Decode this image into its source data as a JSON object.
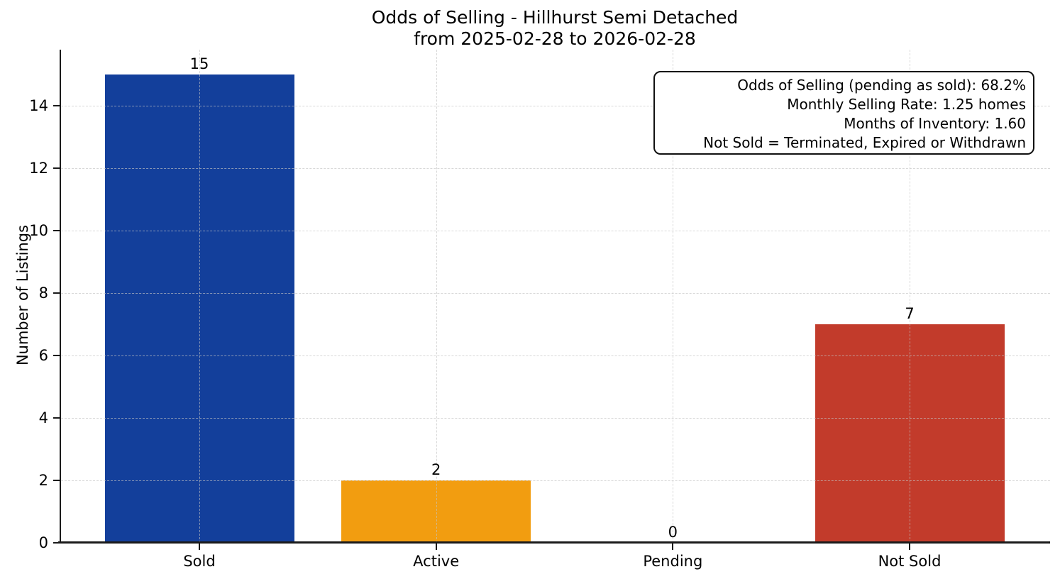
{
  "chart_data": {
    "type": "bar",
    "title": "Odds of Selling - Hillhurst Semi Detached",
    "subtitle": "from 2025-02-28 to 2026-02-28",
    "categories": [
      "Sold",
      "Active",
      "Pending",
      "Not Sold"
    ],
    "values": [
      15,
      2,
      0,
      7
    ],
    "bar_colors": [
      "#133f9b",
      "#f29d10",
      null,
      "#c23b2b"
    ],
    "xlabel": "",
    "ylabel": "Number of Listings",
    "ylim": [
      0,
      15.8
    ],
    "yticks": [
      0,
      2,
      4,
      6,
      8,
      10,
      12,
      14
    ],
    "grid": {
      "style": "dashed",
      "axes": "both",
      "color": "#c4c4c4"
    },
    "legend": "none"
  },
  "annotation_box": {
    "lines": [
      "Odds of Selling (pending as sold): 68.2%",
      "Monthly Selling Rate: 1.25 homes",
      "Months of Inventory: 1.60",
      "Not Sold = Terminated, Expired or Withdrawn"
    ]
  },
  "colors": {
    "sold": "#133f9b",
    "active": "#f29d10",
    "not_sold": "#c23b2b",
    "axis": "#1a1a1a",
    "background": "#ffffff"
  }
}
